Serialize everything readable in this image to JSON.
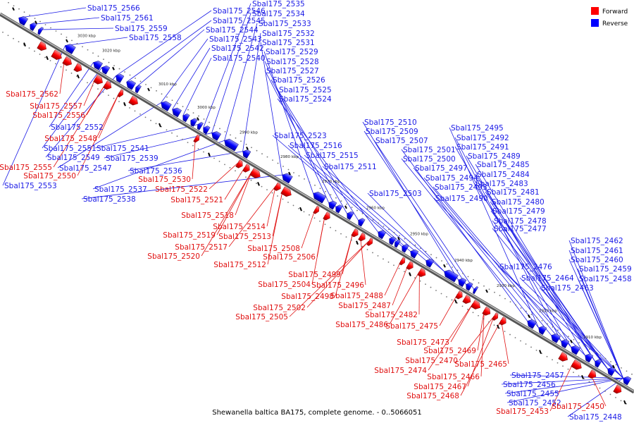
{
  "caption": "Shewanella baltica BA175, complete genome. - 0..5066051",
  "legend": [
    {
      "label": "Forward",
      "color": "#ff0000"
    },
    {
      "label": "Reverse",
      "color": "#0000ff"
    }
  ],
  "colors": {
    "forward": "#ff0000",
    "reverse": "#0000ff",
    "backbone": "#8c8c8c"
  },
  "ticks": [
    "3030 kbp",
    "3020 kbp",
    "3010 kbp",
    "3000 kbp",
    "2990 kbp",
    "2980 kbp",
    "2970 kbp",
    "2960 kbp",
    "2950 kbp",
    "2940 kbp",
    "2930 kbp",
    "2920 kbp",
    "2910 kbp"
  ],
  "reverse_labels": [
    "Sbal175_2566",
    "Sbal175_2561",
    "Sbal175_2559",
    "Sbal175_2558",
    "Sbal175_2546",
    "Sbal175_2545",
    "Sbal175_2544",
    "Sbal175_2543",
    "Sbal175_2542",
    "Sbal175_2540",
    "Sbal175_2535",
    "Sbal175_2534",
    "Sbal175_2533",
    "Sbal175_2532",
    "Sbal175_2531",
    "Sbal175_2529",
    "Sbal175_2528",
    "Sbal175_2527",
    "Sbal175_2526",
    "Sbal175_2525",
    "Sbal175_2524",
    "Sbal175_2552",
    "Sbal175_2551",
    "Sbal175_2549",
    "Sbal175_2547",
    "Sbal175_2541",
    "Sbal175_2539",
    "Sbal175_2536",
    "Sbal175_2553",
    "Sbal175_2537",
    "Sbal175_2538",
    "Sbal175_2523",
    "Sbal175_2516",
    "Sbal175_2515",
    "Sbal175_2511",
    "Sbal175_2510",
    "Sbal175_2509",
    "Sbal175_2507",
    "Sbal175_2501",
    "Sbal175_2500",
    "Sbal175_2497",
    "Sbal175_2494",
    "Sbal175_2493",
    "Sbal175_2490",
    "Sbal175_2503",
    "Sbal175_2495",
    "Sbal175_2492",
    "Sbal175_2491",
    "Sbal175_2489",
    "Sbal175_2485",
    "Sbal175_2484",
    "Sbal175_2483",
    "Sbal175_2481",
    "Sbal175_2480",
    "Sbal175_2479",
    "Sbal175_2478",
    "Sbal175_2477",
    "Sbal175_2476",
    "Sbal175_2464",
    "Sbal175_2463",
    "Sbal175_2462",
    "Sbal175_2461",
    "Sbal175_2460",
    "Sbal175_2459",
    "Sbal175_2458",
    "Sbal175_2457",
    "Sbal175_2456",
    "Sbal175_2455",
    "Sbal175_2452",
    "Sbal175_2448"
  ],
  "forward_labels": [
    "Sbal175_2562",
    "Sbal175_2557",
    "Sbal175_2556",
    "Sbal175_2548",
    "Sbal175_2555",
    "Sbal175_2550",
    "Sbal175_2530",
    "Sbal175_2522",
    "Sbal175_2521",
    "Sbal175_2518",
    "Sbal175_2514",
    "Sbal175_2519",
    "Sbal175_2513",
    "Sbal175_2517",
    "Sbal175_2520",
    "Sbal175_2508",
    "Sbal175_2506",
    "Sbal175_2512",
    "Sbal175_2499",
    "Sbal175_2504",
    "Sbal175_2496",
    "Sbal175_2498",
    "Sbal175_2488",
    "Sbal175_2502",
    "Sbal175_2487",
    "Sbal175_2505",
    "Sbal175_2482",
    "Sbal175_2486",
    "Sbal175_2475",
    "Sbal175_2473",
    "Sbal175_2469",
    "Sbal175_2470",
    "Sbal175_2465",
    "Sbal175_2474",
    "Sbal175_2466",
    "Sbal175_2467",
    "Sbal175_2468",
    "Sbal175_2450",
    "Sbal175_2453"
  ]
}
